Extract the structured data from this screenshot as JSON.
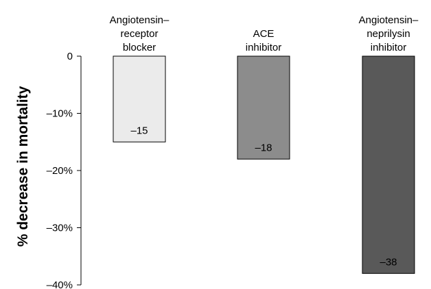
{
  "chart_data": {
    "type": "bar",
    "categories": [
      [
        "Angiotensin–",
        "receptor",
        "blocker"
      ],
      [
        "ACE",
        "inhibitor"
      ],
      [
        "Angiotensin–",
        "neprilysin",
        "inhibitor"
      ]
    ],
    "values": [
      -15,
      -18,
      -38
    ],
    "data_labels": [
      "–15",
      "–18",
      "–38"
    ],
    "bar_colors": [
      "#ebebeb",
      "#8c8c8c",
      "#595959"
    ],
    "data_label_colors": [
      "#000000",
      "#000000",
      "#000000"
    ],
    "ylabel": "% decrease in mortality",
    "ylim": [
      -40,
      0
    ],
    "yticks": [
      0,
      -10,
      -20,
      -30,
      -40
    ],
    "ytick_labels": [
      "0",
      "–10%",
      "–20%",
      "–30%",
      "–40%"
    ],
    "grid": false,
    "legend": "none"
  }
}
